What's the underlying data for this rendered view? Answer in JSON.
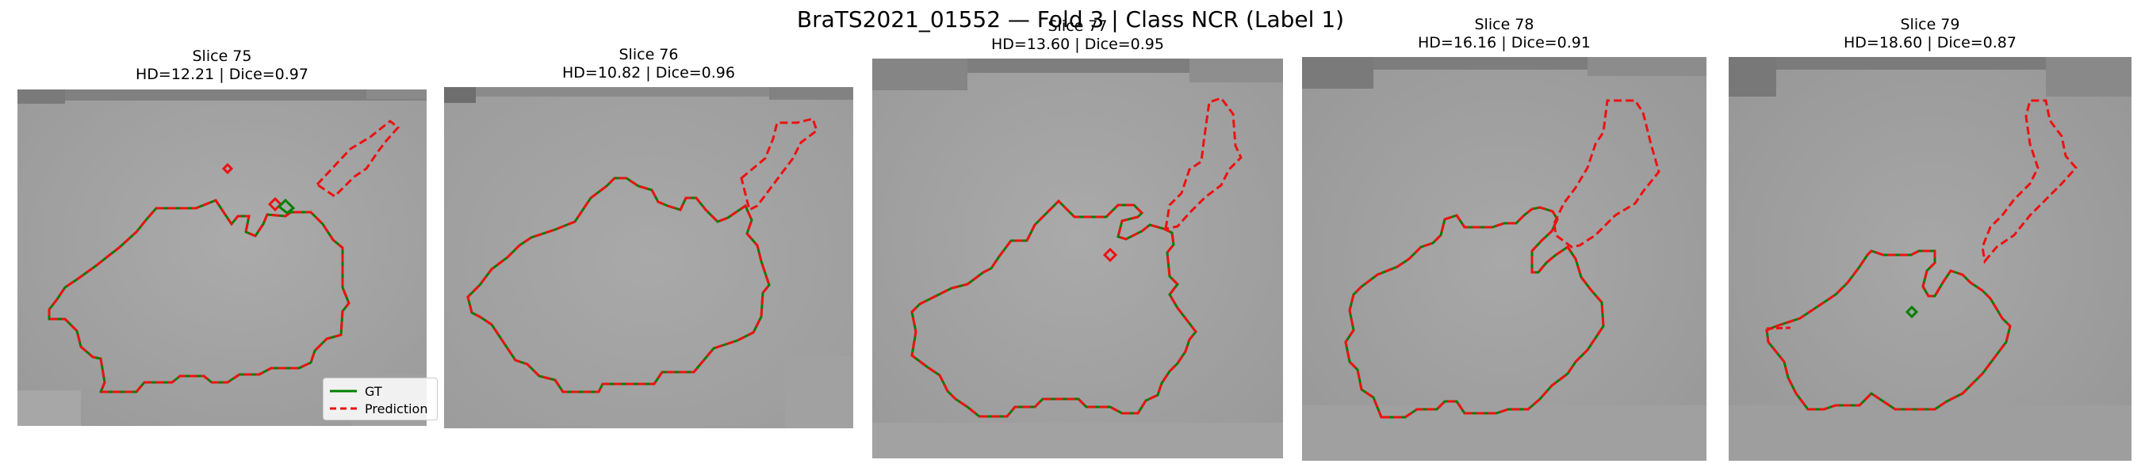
{
  "figure": {
    "title": "BraTS2021_01552 — Fold 3 | Class NCR (Label 1)"
  },
  "panels": [
    {
      "slice": "Slice 75",
      "metrics": "HD=12.21 | Dice=0.97"
    },
    {
      "slice": "Slice 76",
      "metrics": "HD=10.82 | Dice=0.96"
    },
    {
      "slice": "Slice 77",
      "metrics": "HD=13.60 | Dice=0.95"
    },
    {
      "slice": "Slice 78",
      "metrics": "HD=16.16 | Dice=0.91"
    },
    {
      "slice": "Slice 79",
      "metrics": "HD=18.60 | Dice=0.87"
    }
  ],
  "legend": {
    "gt_label": "GT",
    "pred_label": "Prediction"
  },
  "colors": {
    "gt": "#008000",
    "prediction": "#ee1111",
    "background": "#a3a3a3"
  },
  "icons": [
    "legend-gt-line-icon",
    "legend-prediction-dash-icon"
  ]
}
